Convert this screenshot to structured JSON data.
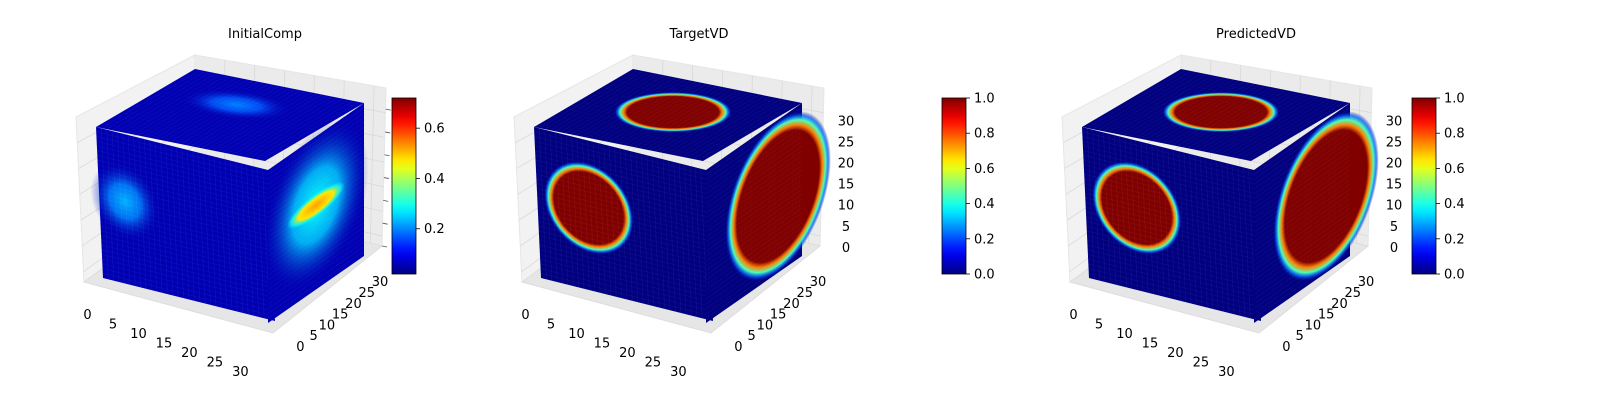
{
  "chart_data": [
    {
      "type": "heatmap",
      "subtype": "3d-voxel-cube",
      "title": "InitialComp",
      "colormap": "jet",
      "xlim": [
        0,
        32
      ],
      "ylim": [
        0,
        32
      ],
      "zlim": [
        0,
        32
      ],
      "xticks": [
        "0",
        "5",
        "10",
        "15",
        "20",
        "25",
        "30"
      ],
      "yticks": [
        "0",
        "5",
        "10",
        "15",
        "20",
        "25",
        "30"
      ],
      "zticks": [],
      "colorbar": {
        "min": 0.02,
        "max": 0.72,
        "ticks": [
          "0.2",
          "0.4",
          "0.6"
        ],
        "tick_values": [
          0.2,
          0.4,
          0.6
        ]
      },
      "faces": {
        "top": [
          {
            "u": 0.45,
            "v": 0.35,
            "ru": 0.3,
            "rv": 0.2,
            "value": 0.25
          }
        ],
        "front": [
          {
            "u": 0.15,
            "v": 0.45,
            "ru": 0.2,
            "rv": 0.25,
            "value": 0.3
          }
        ],
        "right": [
          {
            "u": 0.5,
            "v": 0.45,
            "ru": 0.55,
            "rv": 0.5,
            "value": 0.38
          },
          {
            "u": 0.5,
            "v": 0.45,
            "ru": 0.3,
            "rv": 0.08,
            "value": 0.72,
            "stripe": true
          }
        ]
      },
      "background_value": 0.05,
      "sharp": false
    },
    {
      "type": "heatmap",
      "subtype": "3d-voxel-cube",
      "title": "TargetVD",
      "colormap": "jet",
      "xlim": [
        0,
        32
      ],
      "ylim": [
        0,
        32
      ],
      "zlim": [
        0,
        32
      ],
      "xticks": [
        "0",
        "5",
        "10",
        "15",
        "20",
        "25",
        "30"
      ],
      "yticks": [
        "0",
        "5",
        "10",
        "15",
        "20",
        "25",
        "30"
      ],
      "zticks": [
        "0",
        "5",
        "10",
        "15",
        "20",
        "25",
        "30"
      ],
      "colorbar": {
        "min": 0.0,
        "max": 1.0,
        "ticks": [
          "0.0",
          "0.2",
          "0.4",
          "0.6",
          "0.8",
          "1.0"
        ],
        "tick_values": [
          0.0,
          0.2,
          0.4,
          0.6,
          0.8,
          1.0
        ]
      },
      "faces": {
        "top": [
          {
            "u": 0.5,
            "v": 0.45,
            "ru": 0.3,
            "rv": 0.3,
            "value": 1.0
          }
        ],
        "front": [
          {
            "u": 0.3,
            "v": 0.45,
            "ru": 0.26,
            "rv": 0.3,
            "value": 1.0
          }
        ],
        "right": [
          {
            "u": 0.75,
            "v": 0.5,
            "ru": 0.55,
            "rv": 0.5,
            "value": 1.0
          }
        ]
      },
      "background_value": 0.0,
      "sharp": true
    },
    {
      "type": "heatmap",
      "subtype": "3d-voxel-cube",
      "title": "PredictedVD",
      "colormap": "jet",
      "xlim": [
        0,
        32
      ],
      "ylim": [
        0,
        32
      ],
      "zlim": [
        0,
        32
      ],
      "xticks": [
        "0",
        "5",
        "10",
        "15",
        "20",
        "25",
        "30"
      ],
      "yticks": [
        "0",
        "5",
        "10",
        "15",
        "20",
        "25",
        "30"
      ],
      "zticks": [
        "0",
        "5",
        "10",
        "15",
        "20",
        "25",
        "30"
      ],
      "colorbar": {
        "min": 0.0,
        "max": 1.0,
        "ticks": [
          "0.0",
          "0.2",
          "0.4",
          "0.6",
          "0.8",
          "1.0"
        ],
        "tick_values": [
          0.0,
          0.2,
          0.4,
          0.6,
          0.8,
          1.0
        ]
      },
      "faces": {
        "top": [
          {
            "u": 0.5,
            "v": 0.45,
            "ru": 0.3,
            "rv": 0.3,
            "value": 1.0
          }
        ],
        "front": [
          {
            "u": 0.3,
            "v": 0.45,
            "ru": 0.26,
            "rv": 0.3,
            "value": 1.0
          }
        ],
        "right": [
          {
            "u": 0.75,
            "v": 0.5,
            "ru": 0.55,
            "rv": 0.5,
            "value": 1.0
          }
        ]
      },
      "background_value": 0.0,
      "sharp": true
    }
  ]
}
